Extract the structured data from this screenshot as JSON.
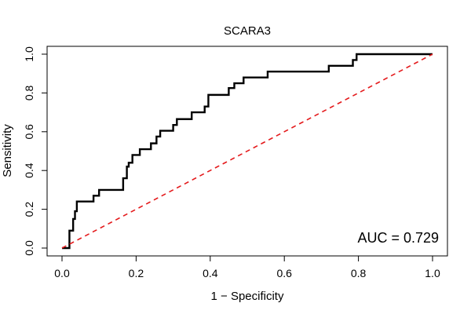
{
  "chart_data": {
    "type": "line",
    "title": "SCARA3",
    "xlabel": "1 − Specificity",
    "ylabel": "Sensitivity",
    "xlim": [
      0.0,
      1.0
    ],
    "ylim": [
      0.0,
      1.0
    ],
    "x_ticks": [
      "0.0",
      "0.2",
      "0.4",
      "0.6",
      "0.8",
      "1.0"
    ],
    "y_ticks": [
      "0.0",
      "0.2",
      "0.4",
      "0.6",
      "0.8",
      "1.0"
    ],
    "grid": false,
    "annotation": "AUC = 0.729",
    "annotation_position": "bottom-right",
    "series": [
      {
        "color": "#000000",
        "style": "solid-step",
        "x": [
          0.0,
          0.02,
          0.02,
          0.03,
          0.03,
          0.035,
          0.035,
          0.04,
          0.04,
          0.045,
          0.045,
          0.085,
          0.085,
          0.1,
          0.1,
          0.165,
          0.165,
          0.175,
          0.175,
          0.18,
          0.18,
          0.19,
          0.19,
          0.195,
          0.195,
          0.21,
          0.21,
          0.24,
          0.24,
          0.255,
          0.255,
          0.265,
          0.265,
          0.3,
          0.3,
          0.31,
          0.31,
          0.35,
          0.35,
          0.385,
          0.385,
          0.395,
          0.395,
          0.45,
          0.45,
          0.465,
          0.465,
          0.49,
          0.49,
          0.555,
          0.555,
          0.72,
          0.72,
          0.785,
          0.785,
          0.795,
          0.795,
          1.0
        ],
        "y": [
          0.0,
          0.0,
          0.09,
          0.09,
          0.15,
          0.15,
          0.19,
          0.19,
          0.24,
          0.24,
          0.24,
          0.24,
          0.27,
          0.27,
          0.3,
          0.3,
          0.36,
          0.36,
          0.42,
          0.42,
          0.44,
          0.44,
          0.48,
          0.48,
          0.48,
          0.48,
          0.51,
          0.51,
          0.54,
          0.54,
          0.575,
          0.575,
          0.605,
          0.605,
          0.635,
          0.635,
          0.665,
          0.665,
          0.7,
          0.7,
          0.73,
          0.73,
          0.79,
          0.79,
          0.825,
          0.825,
          0.85,
          0.85,
          0.88,
          0.88,
          0.91,
          0.91,
          0.94,
          0.94,
          0.97,
          0.97,
          1.0,
          1.0
        ]
      },
      {
        "color": "#e41a1c",
        "style": "dashed",
        "x": [
          0.0,
          1.0
        ],
        "y": [
          0.0,
          1.0
        ]
      }
    ]
  }
}
